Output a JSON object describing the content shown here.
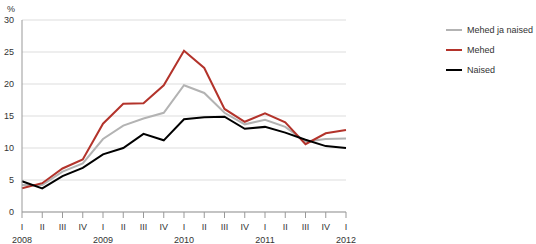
{
  "chart_data": {
    "type": "line",
    "y_label": "%",
    "categories": [
      "I",
      "II",
      "III",
      "IV",
      "I",
      "II",
      "III",
      "IV",
      "I",
      "II",
      "III",
      "IV",
      "I",
      "II",
      "III",
      "IV",
      "I"
    ],
    "years": [
      "2008",
      null,
      null,
      null,
      "2009",
      null,
      null,
      null,
      "2010",
      null,
      null,
      null,
      "2011",
      null,
      null,
      null,
      "2012"
    ],
    "series": [
      {
        "name": "Mehed ja naised",
        "color": "#b3b3b3",
        "values": [
          4.2,
          4.2,
          6.3,
          7.6,
          11.4,
          13.5,
          14.6,
          15.5,
          19.8,
          18.6,
          15.5,
          13.7,
          14.4,
          13.3,
          11.0,
          11.4,
          11.5
        ]
      },
      {
        "name": "Mehed",
        "color": "#b3332b",
        "values": [
          3.7,
          4.5,
          6.8,
          8.2,
          13.8,
          16.9,
          17.0,
          19.8,
          25.2,
          22.5,
          16.1,
          14.1,
          15.4,
          14.0,
          10.6,
          12.3,
          12.8
        ]
      },
      {
        "name": "Naised",
        "color": "#000000",
        "values": [
          4.8,
          3.7,
          5.6,
          6.9,
          9.0,
          10.0,
          12.2,
          11.2,
          14.5,
          14.8,
          14.9,
          13.0,
          13.3,
          12.4,
          11.3,
          10.3,
          10.0
        ]
      }
    ],
    "ylim": [
      0,
      30
    ],
    "yticks": [
      0,
      5,
      10,
      15,
      20,
      25,
      30
    ],
    "grid": true,
    "legend": "right"
  }
}
